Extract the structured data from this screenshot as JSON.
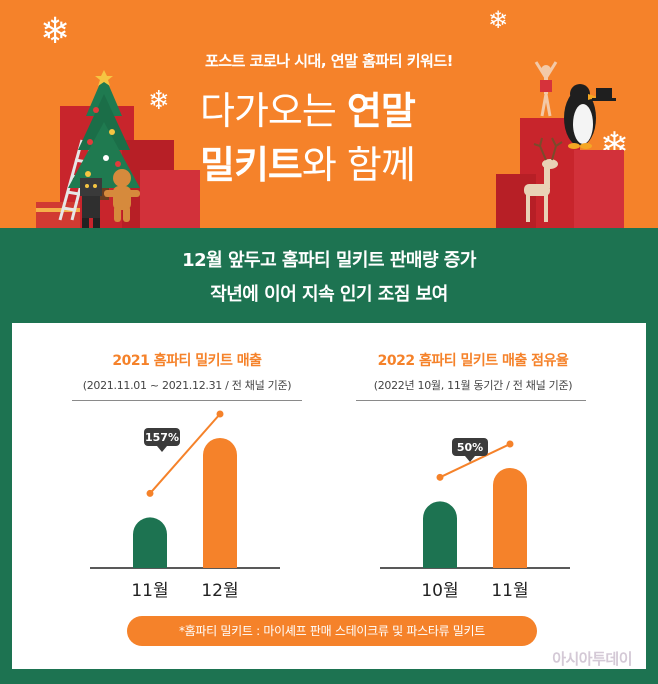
{
  "header": {
    "kicker": "포스트 코로나 시대, 연말 홈파티 키워드!",
    "title_line1_a": "다가오는 ",
    "title_line1_b": "연말",
    "title_line2_a": "밀키트",
    "title_line2_b": "와 함께"
  },
  "band": {
    "headline_1": "12월 앞두고 홈파티 밀키트 판매량 증가",
    "headline_2": "작년에 이어 지속 인기 조짐 보여"
  },
  "colors": {
    "orange": "#f5822a",
    "green": "#1d7351",
    "white": "#ffffff"
  },
  "chart_data": [
    {
      "type": "bar",
      "title": "2021 홈파티 밀키트 매출",
      "subtitle": "(2021.11.01 ~ 2021.12.31 / 전 채널 기준)",
      "categories": [
        "11월",
        "12월"
      ],
      "values": [
        100,
        257
      ],
      "annotation": "157%",
      "bar_colors": [
        "#1d7351",
        "#f5822a"
      ],
      "trend_line": true
    },
    {
      "type": "bar",
      "title": "2022 홈파티 밀키트 매출 점유율",
      "subtitle": "(2022년 10월, 11월 동기간 / 전 채널 기준)",
      "categories": [
        "10월",
        "11월"
      ],
      "values": [
        100,
        150
      ],
      "annotation": "50%",
      "bar_colors": [
        "#1d7351",
        "#f5822a"
      ],
      "trend_line": true
    }
  ],
  "note": "*홈파티 밀키트 : 마이셰프 판매 스테이크류 및 파스타류 밀키트",
  "watermark": "아시아투데이",
  "icons": [
    "snowflake-icon",
    "christmas-tree-icon",
    "gingerbread-icon",
    "robot-toy-icon",
    "ladder-icon",
    "gift-box-icon",
    "dancer-figure-icon",
    "penguin-icon",
    "reindeer-icon"
  ]
}
